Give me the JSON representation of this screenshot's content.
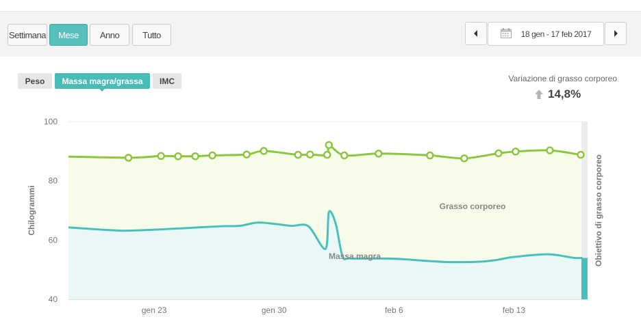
{
  "toolbar": {
    "range_buttons": [
      {
        "label": "Settimana",
        "active": false
      },
      {
        "label": "Mese",
        "active": true
      },
      {
        "label": "Anno",
        "active": false
      },
      {
        "label": "Tutto",
        "active": false
      }
    ],
    "date_range": "18 gen - 17 feb 2017",
    "icons": {
      "prev": "chevron-left-icon",
      "next": "chevron-right-icon",
      "calendar": "calendar-icon"
    }
  },
  "tabs": [
    {
      "label": "Peso",
      "active": false
    },
    {
      "label": "Massa magra/grassa",
      "active": true
    },
    {
      "label": "IMC",
      "active": false
    }
  ],
  "variation": {
    "label": "Variazione di grasso corporeo",
    "value": "14,8%",
    "direction": "up"
  },
  "colors": {
    "accent": "#49bcb8",
    "fat_line": "#8cc63f",
    "lean_line": "#4bbfbc"
  },
  "chart_data": {
    "type": "area",
    "ylabel": "Chilogrammi",
    "y2label": "Obiettivo di grasso corporeo",
    "ylim": [
      40,
      100
    ],
    "yticks": [
      40,
      60,
      80,
      100
    ],
    "xticks": [
      {
        "label": "gen 23",
        "day": 6
      },
      {
        "label": "gen 30",
        "day": 13
      },
      {
        "label": "feb 6",
        "day": 20
      },
      {
        "label": "feb 13",
        "day": 27
      }
    ],
    "xlim": [
      1,
      31.3
    ],
    "annotations": [
      {
        "text": "Grasso corporeo"
      },
      {
        "text": "Massa magra"
      }
    ],
    "series": [
      {
        "name": "Grasso corporeo",
        "x": [
          1,
          4.5,
          6.4,
          7.4,
          8.4,
          9.4,
          11.4,
          12.4,
          14.4,
          15.1,
          16.1,
          16.2,
          17.1,
          19.1,
          22.1,
          24.1,
          26.1,
          27.1,
          29.1,
          30.9
        ],
        "values": [
          88.2,
          87.8,
          88.4,
          88.3,
          88.3,
          88.6,
          88.9,
          90.1,
          88.8,
          88.9,
          88.8,
          92.1,
          88.6,
          89.2,
          88.6,
          87.6,
          89.3,
          89.9,
          90.3,
          88.8
        ],
        "markers": [
          false,
          true,
          true,
          true,
          true,
          true,
          true,
          true,
          true,
          true,
          true,
          true,
          true,
          true,
          true,
          true,
          true,
          true,
          true,
          true
        ]
      },
      {
        "name": "Massa magra",
        "x": [
          1,
          4,
          6,
          8,
          10,
          11,
          12,
          13,
          14,
          15,
          16,
          16.2,
          16.6,
          17,
          17.5,
          20,
          23,
          25,
          26,
          27,
          29,
          30.5,
          31
        ],
        "values": [
          64.3,
          63.2,
          63.5,
          64.1,
          64.7,
          64.8,
          65.9,
          65.5,
          64.8,
          64.7,
          57.0,
          69.5,
          65.5,
          54.5,
          53.8,
          53.7,
          52.6,
          52.7,
          53.3,
          54.3,
          55.2,
          54.0,
          54.0
        ]
      }
    ]
  }
}
